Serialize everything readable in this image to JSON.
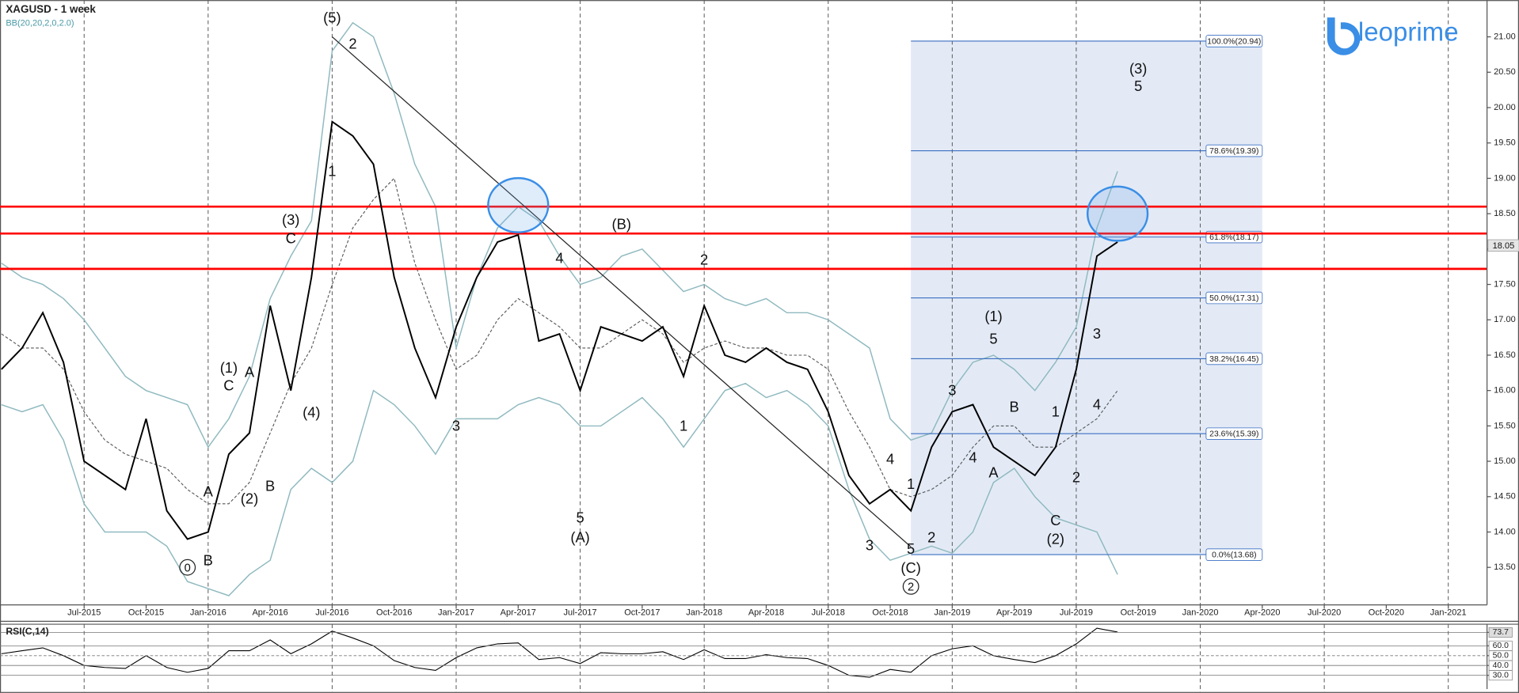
{
  "chart_data": [
    {
      "type": "line",
      "title": "XAGUSD - 1 week",
      "x": [
        "Mar-2015",
        "Apr-2015",
        "May-2015",
        "Jun-2015",
        "Jul-2015",
        "Aug-2015",
        "Sep-2015",
        "Oct-2015",
        "Nov-2015",
        "Dec-2015",
        "Jan-2016",
        "Feb-2016",
        "Mar-2016",
        "Apr-2016",
        "May-2016",
        "Jun-2016",
        "Jul-2016",
        "Aug-2016",
        "Sep-2016",
        "Oct-2016",
        "Nov-2016",
        "Dec-2016",
        "Jan-2017",
        "Feb-2017",
        "Mar-2017",
        "Apr-2017",
        "May-2017",
        "Jun-2017",
        "Jul-2017",
        "Aug-2017",
        "Sep-2017",
        "Oct-2017",
        "Nov-2017",
        "Dec-2017",
        "Jan-2018",
        "Feb-2018",
        "Mar-2018",
        "Apr-2018",
        "May-2018",
        "Jun-2018",
        "Jul-2018",
        "Aug-2018",
        "Sep-2018",
        "Oct-2018",
        "Nov-2018",
        "Dec-2018",
        "Jan-2019",
        "Feb-2019",
        "Mar-2019",
        "Apr-2019",
        "May-2019",
        "Jun-2019",
        "Jul-2019",
        "Aug-2019",
        "Sep-2019"
      ],
      "values": [
        16.3,
        16.6,
        17.1,
        16.4,
        15.0,
        14.8,
        14.6,
        15.6,
        14.3,
        13.9,
        14.0,
        15.1,
        15.4,
        17.2,
        16.0,
        17.6,
        19.8,
        19.6,
        19.2,
        17.6,
        16.6,
        15.9,
        16.9,
        17.6,
        18.1,
        18.2,
        16.7,
        16.8,
        16.0,
        16.9,
        16.8,
        16.7,
        16.9,
        16.2,
        17.2,
        16.5,
        16.4,
        16.6,
        16.4,
        16.3,
        15.7,
        14.8,
        14.4,
        14.6,
        14.3,
        15.2,
        15.7,
        15.8,
        15.2,
        15.0,
        14.8,
        15.2,
        16.3,
        17.9,
        18.1
      ],
      "color": "#000000",
      "bands": {
        "label": "BB(20,20,2,0,2.0)",
        "color": "#8fb9bf",
        "upper": [
          17.8,
          17.6,
          17.5,
          17.3,
          17.0,
          16.6,
          16.2,
          16.0,
          15.9,
          15.8,
          15.2,
          15.6,
          16.2,
          17.3,
          17.9,
          18.4,
          20.8,
          21.2,
          21.0,
          20.2,
          19.2,
          18.6,
          16.6,
          17.6,
          18.3,
          18.6,
          18.4,
          17.9,
          17.5,
          17.6,
          17.9,
          18.0,
          17.7,
          17.4,
          17.5,
          17.3,
          17.2,
          17.3,
          17.1,
          17.1,
          17.0,
          16.8,
          16.6,
          15.6,
          15.3,
          15.4,
          16.0,
          16.4,
          16.5,
          16.3,
          16.0,
          16.4,
          16.9,
          18.3,
          19.1
        ],
        "middle": [
          16.8,
          16.6,
          16.6,
          16.3,
          15.7,
          15.3,
          15.1,
          15.0,
          14.9,
          14.6,
          14.4,
          14.4,
          14.7,
          15.4,
          16.1,
          16.6,
          17.5,
          18.3,
          18.7,
          19.0,
          17.8,
          17.0,
          16.3,
          16.5,
          17.0,
          17.3,
          17.1,
          16.9,
          16.6,
          16.6,
          16.8,
          17.0,
          16.8,
          16.4,
          16.6,
          16.7,
          16.6,
          16.6,
          16.5,
          16.5,
          16.3,
          15.7,
          15.2,
          14.6,
          14.5,
          14.6,
          14.8,
          15.2,
          15.5,
          15.5,
          15.2,
          15.2,
          15.4,
          15.6,
          16.0
        ],
        "lower": [
          15.8,
          15.7,
          15.8,
          15.3,
          14.4,
          14.0,
          14.0,
          14.0,
          13.8,
          13.3,
          13.2,
          13.1,
          13.4,
          13.6,
          14.6,
          14.9,
          14.7,
          15.0,
          16.0,
          15.8,
          15.5,
          15.1,
          15.6,
          15.6,
          15.6,
          15.8,
          15.9,
          15.8,
          15.5,
          15.5,
          15.7,
          15.9,
          15.6,
          15.2,
          15.6,
          16.0,
          16.1,
          15.9,
          16.0,
          15.8,
          15.5,
          14.6,
          13.9,
          13.6,
          13.7,
          13.8,
          13.7,
          14.0,
          14.7,
          14.9,
          14.5,
          14.2,
          14.1,
          14.0,
          13.4
        ]
      },
      "xlim": [
        "Mar-2015",
        "Jan-2021"
      ],
      "xticks": [
        "Jul-2015",
        "Oct-2015",
        "Jan-2016",
        "Apr-2016",
        "Jul-2016",
        "Oct-2016",
        "Jan-2017",
        "Apr-2017",
        "Jul-2017",
        "Oct-2017",
        "Jan-2018",
        "Apr-2018",
        "Jul-2018",
        "Oct-2018",
        "Jan-2019",
        "Apr-2019",
        "Jul-2019",
        "Oct-2019",
        "Jan-2020",
        "Apr-2020",
        "Jul-2020",
        "Oct-2020",
        "Jan-2021"
      ],
      "ylim": [
        12.97,
        21.52
      ],
      "yticks": [
        {
          "value": 13.5,
          "label": "13.50"
        },
        {
          "value": 14,
          "label": "14.00"
        },
        {
          "value": 14.5,
          "label": "14.50"
        },
        {
          "value": 15,
          "label": "15.00"
        },
        {
          "value": 15.5,
          "label": "15.50"
        },
        {
          "value": 16,
          "label": "16.00"
        },
        {
          "value": 16.5,
          "label": "16.50"
        },
        {
          "value": 17,
          "label": "17.00"
        },
        {
          "value": 17.5,
          "label": "17.50"
        },
        {
          "value": 18,
          "label": "18.00"
        },
        {
          "value": 18.5,
          "label": "18.50"
        },
        {
          "value": 19,
          "label": "19.00"
        },
        {
          "value": 19.5,
          "label": "19.50"
        },
        {
          "value": 20,
          "label": "20.00"
        },
        {
          "value": 20.5,
          "label": "20.50"
        },
        {
          "value": 21,
          "label": "21.00"
        }
      ],
      "last_price": 18.05,
      "levels": [
        18.6,
        18.22,
        17.72
      ],
      "level_color": "#ff0000",
      "trendline": {
        "x": [
          "Jul-2016",
          "Nov-2018"
        ],
        "values": [
          21.0,
          13.79
        ]
      },
      "fibonacci": {
        "x": [
          "Nov-2018",
          "Apr-2020"
        ],
        "color": "#3b6fc1",
        "levels": [
          {
            "value": 20.94,
            "label": "100.0%(20.94)"
          },
          {
            "value": 19.39,
            "label": "78.6%(19.39)"
          },
          {
            "value": 18.17,
            "label": "61.8%(18.17)"
          },
          {
            "value": 17.31,
            "label": "50.0%(17.31)"
          },
          {
            "value": 16.45,
            "label": "38.2%(16.45)"
          },
          {
            "value": 15.39,
            "label": "23.6%(15.39)"
          },
          {
            "value": 13.68,
            "label": "0.0%(13.68)"
          }
        ]
      },
      "highlights": [
        {
          "x": "Apr-2017",
          "y": 18.62
        },
        {
          "x": "Sep-2019",
          "y": 18.5
        }
      ],
      "annotations": [
        {
          "text": "0",
          "x": "Dec-2015",
          "y": 13.5,
          "circled": true
        },
        {
          "text": "A",
          "x": "Jan-2016",
          "y": 14.57
        },
        {
          "text": "B",
          "x": "Jan-2016",
          "y": 13.6
        },
        {
          "text": "(1)",
          "x": "Feb-2016",
          "y": 16.32
        },
        {
          "text": "C",
          "x": "Feb-2016",
          "y": 16.07
        },
        {
          "text": "A",
          "x": "Mar-2016",
          "y": 16.26
        },
        {
          "text": "(2)",
          "x": "Mar-2016",
          "y": 14.47
        },
        {
          "text": "B",
          "x": "Apr-2016",
          "y": 14.65
        },
        {
          "text": "(3)",
          "x": "May-2016",
          "y": 18.41
        },
        {
          "text": "C",
          "x": "May-2016",
          "y": 18.15
        },
        {
          "text": "(4)",
          "x": "Jun-2016",
          "y": 15.69
        },
        {
          "text": "(5)",
          "x": "Jul-2016",
          "y": 21.27
        },
        {
          "text": "1",
          "x": "Jul-2016",
          "y": 19.1
        },
        {
          "text": "2",
          "x": "Aug-2016",
          "y": 20.9
        },
        {
          "text": "3",
          "x": "Jan-2017",
          "y": 15.5
        },
        {
          "text": "4",
          "x": "Jun-2017",
          "y": 17.87
        },
        {
          "text": "5",
          "x": "Jul-2017",
          "y": 14.2
        },
        {
          "text": "(A)",
          "x": "Jul-2017",
          "y": 13.92
        },
        {
          "text": "(B)",
          "x": "Sep-2017",
          "y": 18.35
        },
        {
          "text": "1",
          "x": "Dec-2017",
          "y": 15.5
        },
        {
          "text": "2",
          "x": "Jan-2018",
          "y": 17.85
        },
        {
          "text": "3",
          "x": "Sep-2018",
          "y": 13.81
        },
        {
          "text": "4",
          "x": "Oct-2018",
          "y": 15.03
        },
        {
          "text": "5",
          "x": "Nov-2018",
          "y": 13.76
        },
        {
          "text": "(C)",
          "x": "Nov-2018",
          "y": 13.49
        },
        {
          "text": "2",
          "x": "Nov-2018",
          "y": 13.23,
          "circled": true
        },
        {
          "text": "1",
          "x": "Nov-2018",
          "y": 14.68
        },
        {
          "text": "2",
          "x": "Dec-2018",
          "y": 13.92
        },
        {
          "text": "3",
          "x": "Jan-2019",
          "y": 16.0
        },
        {
          "text": "4",
          "x": "Feb-2019",
          "y": 15.05
        },
        {
          "text": "(1)",
          "x": "Mar-2019",
          "y": 17.05
        },
        {
          "text": "5",
          "x": "Mar-2019",
          "y": 16.73
        },
        {
          "text": "A",
          "x": "Mar-2019",
          "y": 14.84
        },
        {
          "text": "B",
          "x": "Apr-2019",
          "y": 15.77
        },
        {
          "text": "C",
          "x": "Jun-2019",
          "y": 14.16
        },
        {
          "text": "(2)",
          "x": "Jun-2019",
          "y": 13.9
        },
        {
          "text": "1",
          "x": "Jun-2019",
          "y": 15.7
        },
        {
          "text": "2",
          "x": "Jul-2019",
          "y": 14.77
        },
        {
          "text": "3",
          "x": "Aug-2019",
          "y": 16.8
        },
        {
          "text": "4",
          "x": "Aug-2019",
          "y": 15.8
        },
        {
          "text": "(3)",
          "x": "Oct-2019",
          "y": 20.55
        },
        {
          "text": "5",
          "x": "Oct-2019",
          "y": 20.3
        }
      ],
      "logo": "leoprime"
    },
    {
      "type": "line",
      "title": "RSI(C,14)",
      "x": [
        "Mar-2015",
        "Apr-2015",
        "May-2015",
        "Jun-2015",
        "Jul-2015",
        "Aug-2015",
        "Sep-2015",
        "Oct-2015",
        "Nov-2015",
        "Dec-2015",
        "Jan-2016",
        "Feb-2016",
        "Mar-2016",
        "Apr-2016",
        "May-2016",
        "Jun-2016",
        "Jul-2016",
        "Aug-2016",
        "Sep-2016",
        "Oct-2016",
        "Nov-2016",
        "Dec-2016",
        "Jan-2017",
        "Feb-2017",
        "Mar-2017",
        "Apr-2017",
        "May-2017",
        "Jun-2017",
        "Jul-2017",
        "Aug-2017",
        "Sep-2017",
        "Oct-2017",
        "Nov-2017",
        "Dec-2017",
        "Jan-2018",
        "Feb-2018",
        "Mar-2018",
        "Apr-2018",
        "May-2018",
        "Jun-2018",
        "Jul-2018",
        "Aug-2018",
        "Sep-2018",
        "Oct-2018",
        "Nov-2018",
        "Dec-2018",
        "Jan-2019",
        "Feb-2019",
        "Mar-2019",
        "Apr-2019",
        "May-2019",
        "Jun-2019",
        "Jul-2019",
        "Aug-2019",
        "Sep-2019"
      ],
      "values": [
        52,
        55,
        58,
        50,
        40,
        38,
        37,
        50,
        38,
        33,
        37,
        55,
        55,
        66,
        52,
        62,
        75,
        68,
        60,
        45,
        38,
        35,
        48,
        58,
        62,
        63,
        46,
        48,
        42,
        53,
        52,
        52,
        54,
        46,
        56,
        47,
        47,
        51,
        48,
        47,
        40,
        30,
        28,
        36,
        33,
        50,
        57,
        60,
        50,
        46,
        43,
        50,
        62,
        78,
        74
      ],
      "color": "#000000",
      "xlim": [
        "Mar-2015",
        "Jan-2021"
      ],
      "ylim": [
        16,
        82
      ],
      "yticks": [
        {
          "value": 30,
          "label": "30.0"
        },
        {
          "value": 40,
          "label": "40.0"
        },
        {
          "value": 50,
          "label": "50.0"
        },
        {
          "value": 60,
          "label": "60.0"
        },
        73.7
      ]
    }
  ]
}
